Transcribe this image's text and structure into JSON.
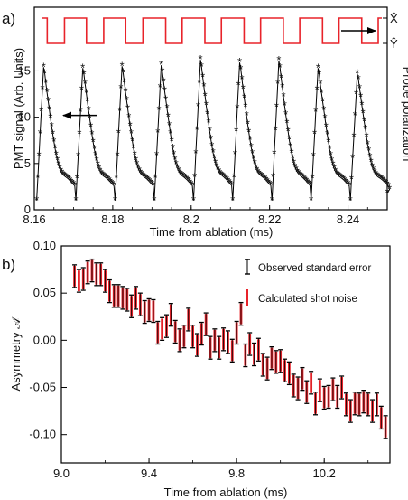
{
  "chart_data": [
    {
      "type": "line",
      "panel_label": "a)",
      "xlabel": "Time from ablation (ms)",
      "ylabel": "PMT signal (Arb. Units)",
      "ylabel_right": "Probe polarization",
      "xlim": [
        8.16,
        8.25
      ],
      "ylim": [
        0,
        17
      ],
      "x_ticks": [
        "8.16",
        "8.18",
        "8.2",
        "8.22",
        "8.24"
      ],
      "y_ticks": [
        "0",
        "5",
        "10",
        "15"
      ],
      "right_axis_ticks": [
        "X̂",
        "Ŷ"
      ],
      "square_wave": {
        "name": "Probe polarization",
        "color": "#e8232a",
        "high_state": "X̂",
        "low_state": "Ŷ",
        "transitions_ms": [
          8.1633,
          8.1677,
          8.1733,
          8.1777,
          8.1833,
          8.1877,
          8.1935,
          8.1977,
          8.2035,
          8.2077,
          8.2135,
          8.2177,
          8.2235,
          8.2277,
          8.2335,
          8.2377,
          8.2435,
          8.2477
        ],
        "ends_high": true
      },
      "pmt_signal": {
        "name": "PMT signal",
        "color": "#000000",
        "marker": "star",
        "pulse_start_ms": 8.1606,
        "pulse_period_ms": 0.01,
        "pulse_peaks": [
          15.7,
          15.6,
          15.8,
          15.9,
          16.5,
          16.2,
          16.4,
          15.6,
          15.0
        ],
        "baseline": 1.0
      },
      "arrows": [
        {
          "points_to": "left axis",
          "at_y": 10.2
        },
        {
          "points_to": "right axis",
          "at_level": "X̂"
        }
      ]
    },
    {
      "type": "scatter",
      "panel_label": "b)",
      "xlabel": "Time from ablation (ms)",
      "ylabel": "Asymmetry 𝒜",
      "xlim": [
        9.0,
        10.5
      ],
      "ylim": [
        -0.13,
        0.1
      ],
      "x_ticks": [
        "9.0",
        "9.4",
        "9.8",
        "10.2"
      ],
      "y_ticks": [
        "0.10",
        "0.05",
        "0.00",
        "-0.05",
        "-0.10"
      ],
      "series": [
        {
          "name": "Observed standard error",
          "color": "#000000"
        },
        {
          "name": "Calculated shot noise",
          "color": "#e8232a"
        }
      ],
      "x": [
        9.06,
        9.08,
        9.1,
        9.12,
        9.14,
        9.16,
        9.18,
        9.2,
        9.22,
        9.24,
        9.26,
        9.28,
        9.3,
        9.32,
        9.34,
        9.36,
        9.38,
        9.4,
        9.42,
        9.44,
        9.46,
        9.48,
        9.5,
        9.52,
        9.54,
        9.56,
        9.58,
        9.6,
        9.62,
        9.64,
        9.66,
        9.68,
        9.7,
        9.72,
        9.74,
        9.76,
        9.78,
        9.8,
        9.82,
        9.84,
        9.86,
        9.88,
        9.9,
        9.92,
        9.94,
        9.96,
        9.98,
        10.0,
        10.02,
        10.04,
        10.06,
        10.08,
        10.1,
        10.12,
        10.14,
        10.16,
        10.18,
        10.2,
        10.22,
        10.24,
        10.26,
        10.28,
        10.3,
        10.32,
        10.34,
        10.36,
        10.38,
        10.4,
        10.42,
        10.44,
        10.46,
        10.48
      ],
      "y": [
        0.068,
        0.063,
        0.065,
        0.072,
        0.074,
        0.07,
        0.07,
        0.063,
        0.052,
        0.047,
        0.047,
        0.045,
        0.043,
        0.036,
        0.045,
        0.038,
        0.03,
        0.032,
        0.031,
        0.008,
        0.012,
        0.015,
        0.027,
        0.009,
        0.0,
        0.004,
        0.022,
        0.004,
        -0.005,
        0.007,
        0.017,
        -0.008,
        0.0,
        -0.008,
        0.001,
        -0.002,
        -0.011,
        0.008,
        0.028,
        -0.016,
        -0.004,
        -0.015,
        -0.01,
        -0.026,
        -0.03,
        -0.019,
        -0.023,
        -0.022,
        -0.032,
        -0.035,
        -0.048,
        -0.051,
        -0.041,
        -0.055,
        -0.045,
        -0.067,
        -0.053,
        -0.061,
        -0.06,
        -0.052,
        -0.06,
        -0.05,
        -0.068,
        -0.075,
        -0.067,
        -0.068,
        -0.065,
        -0.068,
        -0.075,
        -0.068,
        -0.082,
        -0.092
      ],
      "observed_error_half_width": 0.012,
      "shot_noise_half_width": 0.011
    }
  ]
}
